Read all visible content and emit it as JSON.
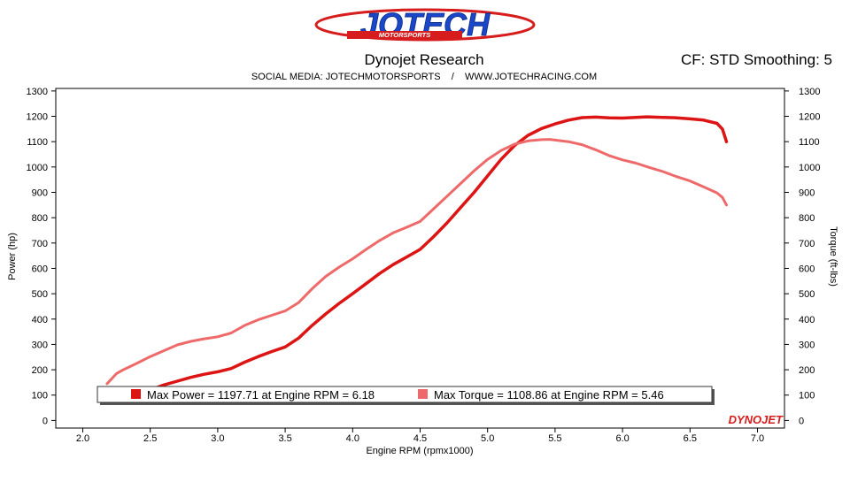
{
  "header": {
    "logo_text": "JOTECH",
    "logo_sub": "MOTORSPORTS",
    "title": "Dynojet Research",
    "right_info": "CF: STD Smoothing: 5",
    "social": "SOCIAL MEDIA: JOTECHMOTORSPORTS    /    WWW.JOTECHRACING.COM"
  },
  "branding": {
    "watermark": "DYNOJET"
  },
  "colors": {
    "power": "#dd1414",
    "torque": "#ee6a6a",
    "logo_red": "#d61c1c",
    "logo_blue": "#1a46c8"
  },
  "chart_data": {
    "type": "line",
    "xlabel": "Engine RPM (rpmx1000)",
    "ylabel_left": "Power (hp)",
    "ylabel_right": "Torque (ft-lbs)",
    "xlim": [
      1.8,
      7.2
    ],
    "ylim": [
      -30,
      1310
    ],
    "x_ticks": [
      "2.0",
      "2.5",
      "3.0",
      "3.5",
      "4.0",
      "4.5",
      "5.0",
      "5.5",
      "6.0",
      "6.5",
      "7.0"
    ],
    "y_ticks": [
      "0",
      "100",
      "200",
      "300",
      "400",
      "500",
      "600",
      "700",
      "800",
      "900",
      "1000",
      "1100",
      "1200",
      "1300"
    ],
    "legend": [
      "Max Power = 1197.71 at Engine RPM = 6.18",
      "Max Torque = 1108.86 at Engine RPM = 5.46"
    ],
    "grid": false,
    "series": [
      {
        "key": "power",
        "x": [
          2.3,
          2.4,
          2.5,
          2.6,
          2.7,
          2.8,
          2.9,
          3.0,
          3.1,
          3.2,
          3.3,
          3.4,
          3.5,
          3.6,
          3.7,
          3.8,
          3.9,
          4.0,
          4.1,
          4.2,
          4.3,
          4.4,
          4.5,
          4.6,
          4.7,
          4.8,
          4.9,
          5.0,
          5.1,
          5.2,
          5.3,
          5.4,
          5.5,
          5.6,
          5.7,
          5.8,
          5.9,
          6.0,
          6.1,
          6.18,
          6.3,
          6.4,
          6.5,
          6.6,
          6.7,
          6.74,
          6.77
        ],
        "y": [
          80,
          100,
          120,
          140,
          155,
          170,
          182,
          192,
          205,
          230,
          252,
          272,
          290,
          325,
          375,
          420,
          462,
          500,
          540,
          580,
          615,
          645,
          675,
          725,
          780,
          840,
          900,
          965,
          1030,
          1085,
          1125,
          1152,
          1170,
          1185,
          1195,
          1197,
          1194,
          1193,
          1196,
          1198,
          1196,
          1194,
          1190,
          1185,
          1172,
          1150,
          1100
        ]
      },
      {
        "key": "torque",
        "x": [
          2.18,
          2.25,
          2.3,
          2.4,
          2.5,
          2.6,
          2.7,
          2.8,
          2.9,
          3.0,
          3.1,
          3.2,
          3.3,
          3.4,
          3.5,
          3.6,
          3.7,
          3.8,
          3.9,
          4.0,
          4.1,
          4.2,
          4.3,
          4.4,
          4.5,
          4.6,
          4.7,
          4.8,
          4.9,
          5.0,
          5.1,
          5.2,
          5.3,
          5.4,
          5.46,
          5.6,
          5.7,
          5.8,
          5.9,
          6.0,
          6.1,
          6.2,
          6.3,
          6.4,
          6.5,
          6.6,
          6.7,
          6.74,
          6.77
        ],
        "y": [
          145,
          185,
          200,
          225,
          252,
          275,
          298,
          312,
          322,
          330,
          345,
          375,
          397,
          415,
          432,
          465,
          520,
          568,
          605,
          638,
          675,
          710,
          740,
          762,
          785,
          835,
          885,
          935,
          985,
          1030,
          1065,
          1090,
          1103,
          1108,
          1109,
          1100,
          1088,
          1068,
          1045,
          1028,
          1015,
          998,
          982,
          962,
          945,
          922,
          898,
          880,
          850
        ]
      }
    ]
  }
}
